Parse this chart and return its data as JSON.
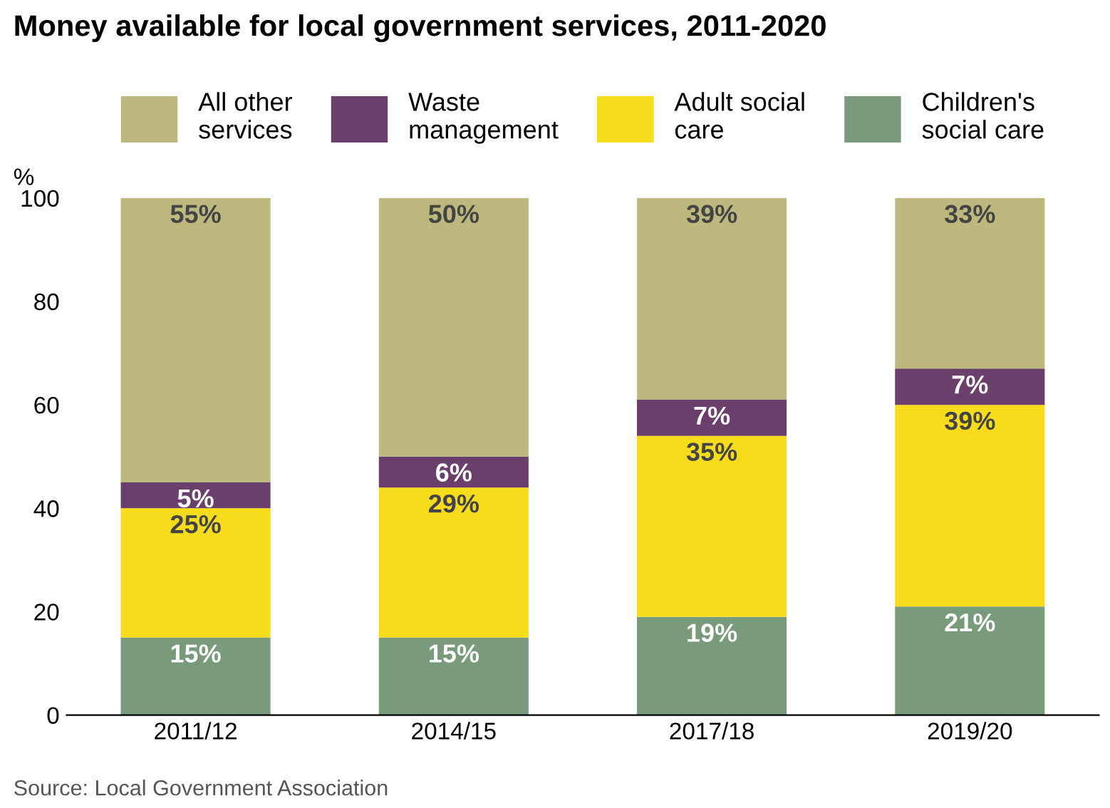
{
  "chart_data": {
    "type": "bar",
    "title": "Money available for local government services, 2011-2020",
    "ylabel": "%",
    "stacked": true,
    "categories": [
      "2011/12",
      "2014/15",
      "2017/18",
      "2019/20"
    ],
    "series": [
      {
        "name": "Children's\nsocial care",
        "color": "#7a9a7c",
        "values": [
          15,
          15,
          19,
          21
        ],
        "value_labels": [
          "15%",
          "15%",
          "19%",
          "21%"
        ]
      },
      {
        "name": "Adult social\ncare",
        "color": "#f7dc1c",
        "values": [
          25,
          29,
          35,
          39
        ],
        "value_labels": [
          "25%",
          "29%",
          "35%",
          "39%"
        ]
      },
      {
        "name": "Waste\nmanagement",
        "color": "#6b3f6b",
        "values": [
          5,
          6,
          7,
          7
        ],
        "value_labels": [
          "5%",
          "6%",
          "7%",
          "7%"
        ]
      },
      {
        "name": "All other\nservices",
        "color": "#bdb97e",
        "values": [
          55,
          50,
          39,
          33
        ],
        "value_labels": [
          "55%",
          "50%",
          "39%",
          "33%"
        ]
      }
    ],
    "ylim": [
      0,
      100
    ],
    "yticks": [
      0,
      20,
      40,
      60,
      80,
      100
    ],
    "grid": false,
    "legend": "top",
    "annotations": [
      "Source: Local Government Association"
    ]
  }
}
